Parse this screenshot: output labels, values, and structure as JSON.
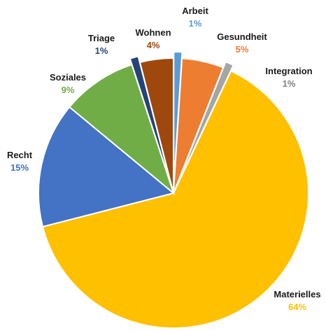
{
  "chart_data": {
    "type": "pie",
    "title": "",
    "legend": "none",
    "slices": [
      {
        "label": "Arbeit",
        "value": 1,
        "display": "1%",
        "color": "#5B9BD5",
        "text_color": "#5B9BD5"
      },
      {
        "label": "Gesundheit",
        "value": 5,
        "display": "5%",
        "color": "#ED7D31",
        "text_color": "#ED7D31"
      },
      {
        "label": "Integration",
        "value": 1,
        "display": "1%",
        "color": "#A5A5A5",
        "text_color": "#7F7F7F"
      },
      {
        "label": "Materielles",
        "value": 64,
        "display": "64%",
        "color": "#FFC000",
        "text_color": "#FFC000"
      },
      {
        "label": "Recht",
        "value": 15,
        "display": "15%",
        "color": "#4472C4",
        "text_color": "#4472C4"
      },
      {
        "label": "Soziales",
        "value": 9,
        "display": "9%",
        "color": "#70AD47",
        "text_color": "#70AD47"
      },
      {
        "label": "Triage",
        "value": 1,
        "display": "1%",
        "color": "#264478",
        "text_color": "#264478"
      },
      {
        "label": "Wohnen",
        "value": 4,
        "display": "4%",
        "color": "#9E480E",
        "text_color": "#9E480E"
      }
    ]
  }
}
